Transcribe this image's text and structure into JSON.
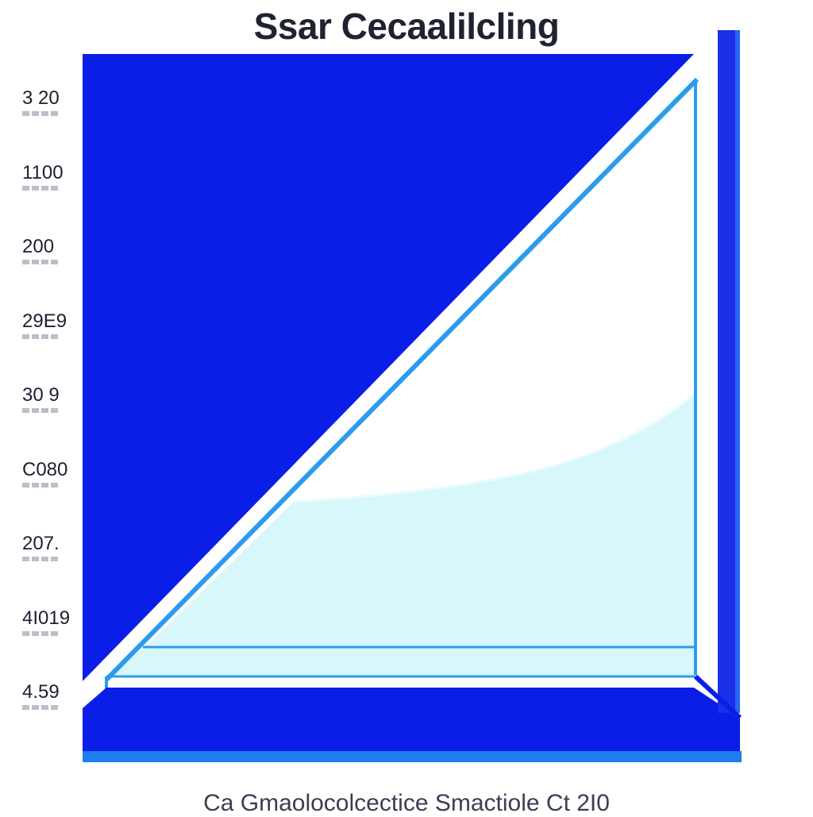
{
  "chart_data": {
    "type": "area",
    "title": "Ssar Cecaalilcling",
    "caption": "Ca Gmaolocolcectice Smactiole Ct 2I0",
    "ytick_labels": [
      "3 20",
      "1100",
      "200",
      "29E9",
      "30 9",
      "C080",
      "207.",
      "4I019",
      "4.59"
    ],
    "colors": {
      "primary": "#0a1ee8",
      "accent_line": "#2a9cf0",
      "fill_light": "#d8f7fb",
      "text": "#1f2230"
    }
  }
}
